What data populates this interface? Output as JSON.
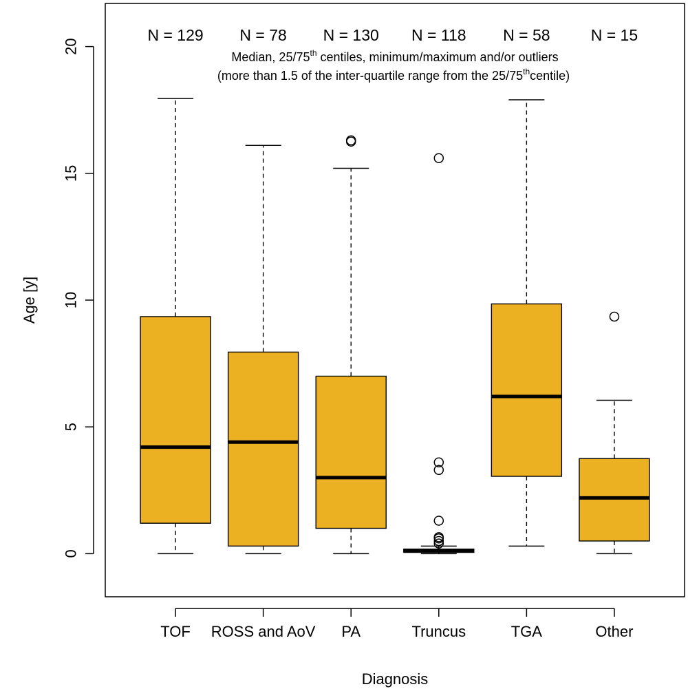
{
  "chart_data": {
    "type": "boxplot",
    "xlabel": "Diagnosis",
    "ylabel": "Age [y]",
    "ylim": [
      -1.7,
      21.7
    ],
    "yticks": [
      0,
      5,
      10,
      15,
      20
    ],
    "box_color": "#EBB123",
    "annotation": {
      "line1": {
        "pre": "Median, 25/75",
        "sup": "th",
        "post": " centiles, minimum/maximum and/or outliers"
      },
      "line2": {
        "pre": "(more than 1.5 of the inter-quartile range from the 25/75",
        "sup": "th",
        "post": "centile)"
      }
    },
    "groups": [
      {
        "category": "TOF",
        "n_label": "N = 129",
        "min": 0.0,
        "q1": 1.2,
        "median": 4.2,
        "q3": 9.35,
        "max": 17.95,
        "outliers": []
      },
      {
        "category": "ROSS and AoV",
        "n_label": "N = 78",
        "min": 0.0,
        "q1": 0.3,
        "median": 4.4,
        "q3": 7.95,
        "max": 16.1,
        "outliers": []
      },
      {
        "category": "PA",
        "n_label": "N = 130",
        "min": 0.0,
        "q1": 1.0,
        "median": 3.0,
        "q3": 7.0,
        "max": 15.2,
        "outliers": [
          16.25,
          16.3
        ]
      },
      {
        "category": "Truncus",
        "n_label": "N = 118",
        "min": 0.0,
        "q1": 0.05,
        "median": 0.12,
        "q3": 0.18,
        "max": 0.3,
        "outliers": [
          0.4,
          0.5,
          0.6,
          0.65,
          1.3,
          3.3,
          3.6,
          15.6
        ]
      },
      {
        "category": "TGA",
        "n_label": "N = 58",
        "min": 0.3,
        "q1": 3.05,
        "median": 6.2,
        "q3": 9.85,
        "max": 17.9,
        "outliers": []
      },
      {
        "category": "Other",
        "n_label": "N = 15",
        "min": 0.0,
        "q1": 0.5,
        "median": 2.2,
        "q3": 3.75,
        "max": 6.05,
        "outliers": [
          9.35
        ]
      }
    ]
  }
}
